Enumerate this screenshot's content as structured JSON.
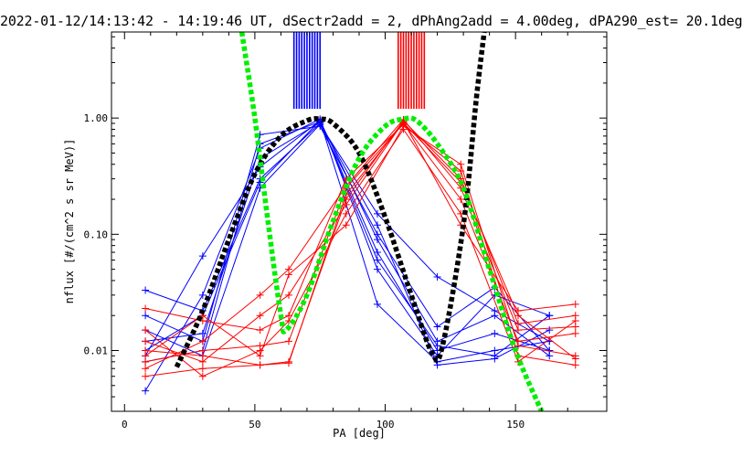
{
  "chart_data": {
    "type": "line",
    "title": "2022-01-12/14:13:42 - 14:19:46 UT, dSectr2add = 2, dPhAng2add = 4.00deg, dPA290_est=  20.1deg",
    "xlabel": "PA [deg]",
    "ylabel": "nflux [#/(cm^2 s sr MeV)]",
    "xlim": [
      -5,
      185
    ],
    "ylim": [
      0.003,
      5.5
    ],
    "yscale": "log",
    "xticks": [
      0,
      50,
      100,
      150
    ],
    "xtick_labels": [
      "0",
      "50",
      "100",
      "150"
    ],
    "yticks": [
      0.01,
      0.1,
      1.0
    ],
    "ytick_labels": [
      "0.01",
      "0.10",
      "1.00"
    ],
    "grid": false,
    "legend": "none",
    "colors": {
      "blue": "#0000ff",
      "red": "#ff0000",
      "black": "#000000",
      "green": "#00ee00"
    },
    "series": [
      {
        "color": "#0000ff",
        "marker": "+",
        "x": [
          8,
          30,
          52,
          75,
          97,
          120,
          142,
          163
        ],
        "y": [
          0.009,
          0.065,
          0.38,
          0.95,
          0.09,
          0.012,
          0.02,
          0.009
        ]
      },
      {
        "color": "#0000ff",
        "marker": "+",
        "x": [
          8,
          30,
          52,
          75,
          97,
          120,
          142,
          163
        ],
        "y": [
          0.012,
          0.014,
          0.45,
          0.92,
          0.07,
          0.01,
          0.014,
          0.01
        ]
      },
      {
        "color": "#0000ff",
        "marker": "+",
        "x": [
          8,
          30,
          52,
          75,
          97,
          120,
          142,
          163
        ],
        "y": [
          0.033,
          0.022,
          0.3,
          0.9,
          0.12,
          0.0075,
          0.0085,
          0.015
        ]
      },
      {
        "color": "#0000ff",
        "marker": "+",
        "x": [
          8,
          30,
          52,
          75,
          97,
          120,
          142,
          163
        ],
        "y": [
          0.0045,
          0.03,
          0.55,
          0.98,
          0.05,
          0.009,
          0.03,
          0.02
        ]
      },
      {
        "color": "#0000ff",
        "marker": "+",
        "x": [
          8,
          30,
          52,
          75,
          97,
          120,
          142,
          163
        ],
        "y": [
          0.015,
          0.009,
          0.25,
          0.88,
          0.15,
          0.043,
          0.022,
          0.012
        ]
      },
      {
        "color": "#0000ff",
        "marker": "+",
        "x": [
          8,
          30,
          52,
          75,
          97,
          120,
          142,
          163
        ],
        "y": [
          0.008,
          0.01,
          0.6,
          0.93,
          0.06,
          0.011,
          0.009,
          0.02
        ]
      },
      {
        "color": "#0000ff",
        "marker": "+",
        "x": [
          8,
          30,
          52,
          75,
          97,
          120,
          142,
          163
        ],
        "y": [
          0.02,
          0.012,
          0.72,
          0.85,
          0.1,
          0.016,
          0.035,
          0.01
        ]
      },
      {
        "color": "#0000ff",
        "marker": "+",
        "x": [
          8,
          30,
          52,
          75,
          97,
          120,
          142,
          163
        ],
        "y": [
          0.01,
          0.02,
          0.28,
          0.95,
          0.025,
          0.008,
          0.01,
          0.012
        ]
      },
      {
        "color": "#ff0000",
        "marker": "+",
        "x": [
          8,
          30,
          52,
          63,
          85,
          107,
          129,
          151,
          173
        ],
        "y": [
          0.006,
          0.007,
          0.0075,
          0.008,
          0.2,
          0.95,
          0.3,
          0.017,
          0.02
        ]
      },
      {
        "color": "#ff0000",
        "marker": "+",
        "x": [
          8,
          30,
          52,
          63,
          85,
          107,
          129,
          151,
          173
        ],
        "y": [
          0.008,
          0.01,
          0.011,
          0.012,
          0.25,
          0.9,
          0.2,
          0.012,
          0.014
        ]
      },
      {
        "color": "#ff0000",
        "marker": "+",
        "x": [
          8,
          30,
          52,
          63,
          85,
          107,
          129,
          151,
          173
        ],
        "y": [
          0.023,
          0.018,
          0.015,
          0.02,
          0.3,
          0.88,
          0.35,
          0.009,
          0.0075
        ]
      },
      {
        "color": "#ff0000",
        "marker": "+",
        "x": [
          8,
          30,
          52,
          63,
          85,
          107,
          129,
          151,
          173
        ],
        "y": [
          0.012,
          0.008,
          0.02,
          0.03,
          0.18,
          0.93,
          0.12,
          0.022,
          0.025
        ]
      },
      {
        "color": "#ff0000",
        "marker": "+",
        "x": [
          8,
          30,
          52,
          63,
          85,
          107,
          129,
          151,
          173
        ],
        "y": [
          0.009,
          0.02,
          0.009,
          0.045,
          0.12,
          0.85,
          0.4,
          0.011,
          0.009
        ]
      },
      {
        "color": "#ff0000",
        "marker": "+",
        "x": [
          8,
          30,
          52,
          63,
          85,
          107,
          129,
          151,
          173
        ],
        "y": [
          0.007,
          0.012,
          0.03,
          0.05,
          0.26,
          0.97,
          0.25,
          0.015,
          0.016
        ]
      },
      {
        "color": "#ff0000",
        "marker": "+",
        "x": [
          8,
          30,
          52,
          63,
          85,
          107,
          129,
          151,
          173
        ],
        "y": [
          0.015,
          0.006,
          0.01,
          0.018,
          0.15,
          0.8,
          0.15,
          0.008,
          0.018
        ]
      },
      {
        "color": "#ff0000",
        "marker": "+",
        "x": [
          8,
          30,
          52,
          63,
          85,
          107,
          129,
          151,
          173
        ],
        "y": [
          0.01,
          0.009,
          0.0075,
          0.0078,
          0.22,
          0.91,
          0.28,
          0.02,
          0.0085
        ]
      }
    ],
    "fits": [
      {
        "color": "#000000",
        "style": "dashed-thick",
        "x": [
          20,
          30,
          40,
          50,
          60,
          70,
          75,
          80,
          90,
          100,
          110,
          118,
          122,
          130,
          135,
          138
        ],
        "y": [
          0.0072,
          0.022,
          0.09,
          0.33,
          0.7,
          0.95,
          0.98,
          0.9,
          0.5,
          0.14,
          0.03,
          0.0095,
          0.011,
          0.12,
          1.5,
          5.5
        ]
      },
      {
        "color": "#00ee00",
        "style": "dashed-thick",
        "x": [
          45,
          50,
          55,
          60,
          62,
          70,
          80,
          90,
          100,
          107,
          112,
          120,
          130,
          140,
          150,
          160
        ],
        "y": [
          5.5,
          1.0,
          0.13,
          0.02,
          0.015,
          0.03,
          0.13,
          0.45,
          0.85,
          0.98,
          0.95,
          0.6,
          0.25,
          0.05,
          0.01,
          0.003
        ]
      }
    ],
    "markers": [
      {
        "color": "#0000ff",
        "x": [
          65,
          66,
          67,
          68,
          69,
          70,
          71,
          72,
          73,
          74,
          75
        ]
      },
      {
        "color": "#ff0000",
        "x": [
          105,
          106,
          107,
          108,
          109,
          110,
          111,
          112,
          113,
          114,
          115
        ]
      }
    ]
  }
}
